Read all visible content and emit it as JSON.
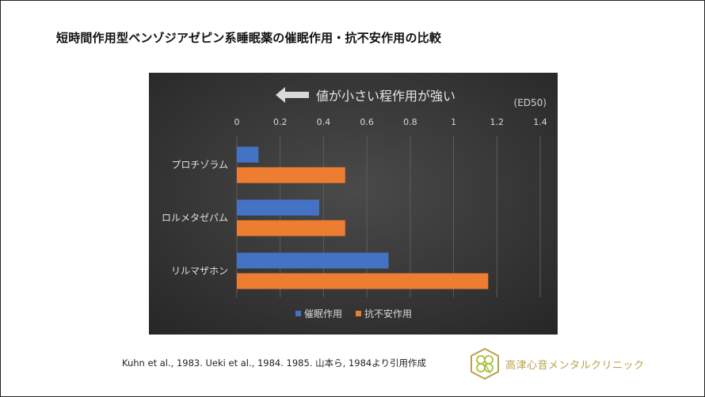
{
  "slide": {
    "title": "短時間作用型ベンゾジアゼピン系睡眠薬の催眠作用・抗不安作用の比較",
    "citation": "Kuhn et al., 1983.  Ueki et al., 1984.  1985.  山本ら, 1984より引用作成",
    "clinic_name": "高津心音メンタルクリニック"
  },
  "chart_data": {
    "type": "bar",
    "orientation": "horizontal",
    "annotation": "値が小さい程作用が強い",
    "unit_label": "(ED50)",
    "categories": [
      "プロチゾラム",
      "ロルメタゼパム",
      "リルマザホン"
    ],
    "series": [
      {
        "name": "催眠作用",
        "values": [
          0.1,
          0.38,
          0.7
        ],
        "color": "#4472c4"
      },
      {
        "name": "抗不安作用",
        "values": [
          0.5,
          0.5,
          1.16
        ],
        "color": "#ed7d31"
      }
    ],
    "xlim": [
      0,
      1.4
    ],
    "ticks": [
      "0",
      "0.2",
      "0.4",
      "0.6",
      "0.8",
      "1",
      "1.2",
      "1.4"
    ],
    "grid": true,
    "legend": "bottom",
    "background": "#2f2f2f"
  }
}
